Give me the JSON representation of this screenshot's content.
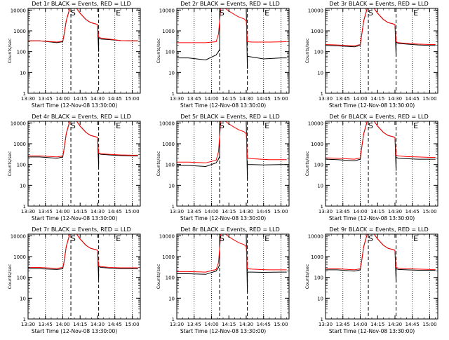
{
  "xlabel": "Start Time (12-Nov-08 13:30:00)",
  "ylabel": "Counts/sec",
  "x_ticks": [
    "13:30",
    "13:45",
    "14:00",
    "14:15",
    "14:30",
    "14:45",
    "15:00"
  ],
  "y_ticks": [
    "1",
    "10",
    "100",
    "1000",
    "10000"
  ],
  "start_marker": "S",
  "end_marker": "E",
  "colors": {
    "events": "#000000",
    "lld": "#ff0000",
    "axes": "#000000"
  },
  "chart_data": [
    {
      "type": "line",
      "title": "Det 1r BLACK = Events, RED = LLD",
      "xlim": [
        "13:30",
        "15:07"
      ],
      "ylim": [
        1,
        12000
      ],
      "yscale": "log",
      "series": [
        {
          "color": "black",
          "x": [
            "13:30",
            "13:40",
            "13:55",
            "14:00",
            "14:01",
            "14:03",
            "14:06",
            "14:08",
            "14:12",
            "14:15",
            "14:20",
            "14:24",
            "14:28",
            "14:30",
            "14:31",
            "14:31",
            "14:33",
            "14:40",
            "14:50",
            "15:00",
            "15:05"
          ],
          "y": [
            330,
            330,
            270,
            300,
            600,
            3000,
            12000,
            12000,
            12000,
            7000,
            3500,
            2500,
            2200,
            2000,
            100,
            450,
            400,
            380,
            340,
            330,
            330
          ]
        },
        {
          "color": "red",
          "x": [
            "13:30",
            "13:40",
            "13:55",
            "14:00",
            "14:01",
            "14:03",
            "14:06",
            "14:08",
            "14:12",
            "14:15",
            "14:20",
            "14:24",
            "14:28",
            "14:30",
            "14:31",
            "14:33",
            "14:40",
            "14:50",
            "15:00",
            "15:05"
          ],
          "y": [
            330,
            330,
            290,
            320,
            600,
            3000,
            12000,
            12000,
            12000,
            7000,
            3500,
            2500,
            2200,
            2000,
            500,
            450,
            400,
            340,
            330,
            330
          ]
        }
      ]
    },
    {
      "type": "line",
      "title": "Det 2r BLACK = Events, RED = LLD",
      "xlim": [
        "13:30",
        "15:07"
      ],
      "ylim": [
        1,
        12000
      ],
      "yscale": "log",
      "series": [
        {
          "color": "black",
          "x": [
            "13:30",
            "13:40",
            "13:55",
            "14:04",
            "14:06",
            "14:07",
            "14:07",
            "14:09",
            "14:28",
            "14:30",
            "14:31",
            "14:31",
            "14:35",
            "14:45",
            "15:00",
            "15:05"
          ],
          "y": [
            50,
            50,
            40,
            70,
            100,
            130,
            12000,
            12000,
            12000,
            12000,
            15,
            60,
            55,
            45,
            50,
            50
          ]
        },
        {
          "color": "red",
          "x": [
            "13:30",
            "13:40",
            "13:55",
            "14:04",
            "14:06",
            "14:08",
            "14:12",
            "14:15",
            "14:20",
            "14:24",
            "14:28",
            "14:30",
            "14:31",
            "14:35",
            "14:50",
            "15:05"
          ],
          "y": [
            270,
            270,
            270,
            300,
            700,
            12000,
            12000,
            9000,
            6000,
            4500,
            3800,
            3000,
            300,
            290,
            290,
            300
          ]
        }
      ]
    },
    {
      "type": "line",
      "title": "Det 3r BLACK = Events, RED = LLD",
      "xlim": [
        "13:30",
        "15:07"
      ],
      "ylim": [
        1,
        12000
      ],
      "yscale": "log",
      "series": [
        {
          "color": "black",
          "x": [
            "13:30",
            "13:40",
            "13:55",
            "14:00",
            "14:01",
            "14:03",
            "14:06",
            "14:08",
            "14:12",
            "14:15",
            "14:20",
            "14:24",
            "14:28",
            "14:30",
            "14:31",
            "14:31",
            "14:33",
            "14:40",
            "14:50",
            "15:00",
            "15:05"
          ],
          "y": [
            200,
            190,
            170,
            200,
            500,
            3000,
            12000,
            12000,
            12000,
            7000,
            3500,
            2500,
            2200,
            2000,
            60,
            280,
            250,
            230,
            210,
            200,
            200
          ]
        },
        {
          "color": "red",
          "x": [
            "13:30",
            "13:40",
            "13:55",
            "14:00",
            "14:01",
            "14:03",
            "14:06",
            "14:08",
            "14:12",
            "14:15",
            "14:20",
            "14:24",
            "14:28",
            "14:30",
            "14:31",
            "14:33",
            "14:40",
            "14:50",
            "15:00",
            "15:05"
          ],
          "y": [
            220,
            210,
            190,
            220,
            500,
            3000,
            12000,
            12000,
            12000,
            7000,
            3500,
            2500,
            2200,
            2000,
            300,
            270,
            250,
            230,
            220,
            220
          ]
        }
      ]
    },
    {
      "type": "line",
      "title": "Det 4r BLACK = Events, RED = LLD",
      "xlim": [
        "13:30",
        "15:07"
      ],
      "ylim": [
        1,
        12000
      ],
      "yscale": "log",
      "series": [
        {
          "color": "black",
          "x": [
            "13:30",
            "13:40",
            "13:55",
            "14:00",
            "14:01",
            "14:03",
            "14:06",
            "14:08",
            "14:12",
            "14:15",
            "14:20",
            "14:24",
            "14:28",
            "14:30",
            "14:31",
            "14:31",
            "14:33",
            "14:40",
            "14:50",
            "15:00",
            "15:05"
          ],
          "y": [
            230,
            230,
            200,
            230,
            500,
            3000,
            12000,
            12000,
            12000,
            7000,
            3500,
            2500,
            2200,
            2000,
            80,
            330,
            310,
            290,
            270,
            260,
            260
          ]
        },
        {
          "color": "red",
          "x": [
            "13:30",
            "13:40",
            "13:55",
            "14:00",
            "14:01",
            "14:03",
            "14:06",
            "14:08",
            "14:12",
            "14:15",
            "14:20",
            "14:24",
            "14:28",
            "14:30",
            "14:31",
            "14:33",
            "14:40",
            "14:50",
            "15:00",
            "15:05"
          ],
          "y": [
            260,
            260,
            230,
            260,
            500,
            3000,
            12000,
            12000,
            12000,
            7000,
            3500,
            2500,
            2200,
            2000,
            350,
            330,
            310,
            290,
            280,
            280
          ]
        }
      ]
    },
    {
      "type": "line",
      "title": "Det 5r BLACK = Events, RED = LLD",
      "xlim": [
        "13:30",
        "15:07"
      ],
      "ylim": [
        1,
        12000
      ],
      "yscale": "log",
      "series": [
        {
          "color": "black",
          "x": [
            "13:30",
            "13:40",
            "13:55",
            "14:04",
            "14:06",
            "14:07",
            "14:07",
            "14:09",
            "14:28",
            "14:30",
            "14:31",
            "14:31",
            "14:35",
            "14:45",
            "15:00",
            "15:05"
          ],
          "y": [
            90,
            90,
            80,
            120,
            180,
            250,
            12000,
            12000,
            12000,
            12000,
            20,
            100,
            100,
            95,
            100,
            100
          ]
        },
        {
          "color": "red",
          "x": [
            "13:30",
            "13:40",
            "13:55",
            "14:04",
            "14:06",
            "14:08",
            "14:12",
            "14:15",
            "14:20",
            "14:24",
            "14:28",
            "14:30",
            "14:31",
            "14:35",
            "14:50",
            "15:05"
          ],
          "y": [
            130,
            130,
            120,
            160,
            400,
            12000,
            12000,
            9000,
            6000,
            4500,
            3800,
            3000,
            200,
            190,
            170,
            170
          ]
        }
      ]
    },
    {
      "type": "line",
      "title": "Det 6r BLACK = Events, RED = LLD",
      "xlim": [
        "13:30",
        "15:07"
      ],
      "ylim": [
        1,
        12000
      ],
      "yscale": "log",
      "series": [
        {
          "color": "black",
          "x": [
            "13:30",
            "13:40",
            "13:55",
            "14:00",
            "14:01",
            "14:03",
            "14:06",
            "14:08",
            "14:12",
            "14:15",
            "14:20",
            "14:24",
            "14:28",
            "14:30",
            "14:31",
            "14:31",
            "14:33",
            "14:40",
            "14:50",
            "15:00",
            "15:05"
          ],
          "y": [
            180,
            170,
            150,
            180,
            500,
            3000,
            12000,
            12000,
            12000,
            7000,
            3500,
            2500,
            2200,
            2000,
            50,
            220,
            200,
            190,
            180,
            180,
            180
          ]
        },
        {
          "color": "red",
          "x": [
            "13:30",
            "13:40",
            "13:55",
            "14:00",
            "14:01",
            "14:03",
            "14:06",
            "14:08",
            "14:12",
            "14:15",
            "14:20",
            "14:24",
            "14:28",
            "14:30",
            "14:31",
            "14:33",
            "14:40",
            "14:50",
            "15:00",
            "15:05"
          ],
          "y": [
            210,
            200,
            180,
            210,
            500,
            3000,
            12000,
            12000,
            12000,
            7000,
            3500,
            2500,
            2200,
            2000,
            280,
            260,
            240,
            230,
            220,
            220
          ]
        }
      ]
    },
    {
      "type": "line",
      "title": "Det 7r BLACK = Events, RED = LLD",
      "xlim": [
        "13:30",
        "15:07"
      ],
      "ylim": [
        1,
        12000
      ],
      "yscale": "log",
      "series": [
        {
          "color": "black",
          "x": [
            "13:30",
            "13:40",
            "13:55",
            "14:00",
            "14:01",
            "14:03",
            "14:06",
            "14:08",
            "14:12",
            "14:15",
            "14:20",
            "14:24",
            "14:28",
            "14:30",
            "14:31",
            "14:31",
            "14:33",
            "14:40",
            "14:50",
            "15:00",
            "15:05"
          ],
          "y": [
            260,
            260,
            240,
            260,
            500,
            3000,
            12000,
            12000,
            12000,
            7000,
            3500,
            2500,
            2200,
            2000,
            80,
            330,
            300,
            280,
            260,
            260,
            260
          ]
        },
        {
          "color": "red",
          "x": [
            "13:30",
            "13:40",
            "13:55",
            "14:00",
            "14:01",
            "14:03",
            "14:06",
            "14:08",
            "14:12",
            "14:15",
            "14:20",
            "14:24",
            "14:28",
            "14:30",
            "14:31",
            "14:33",
            "14:40",
            "14:50",
            "15:00",
            "15:05"
          ],
          "y": [
            300,
            300,
            270,
            300,
            500,
            3000,
            12000,
            12000,
            12000,
            7000,
            3500,
            2500,
            2200,
            2000,
            350,
            330,
            300,
            290,
            290,
            290
          ]
        }
      ]
    },
    {
      "type": "line",
      "title": "Det 8r BLACK = Events, RED = LLD",
      "xlim": [
        "13:30",
        "15:07"
      ],
      "ylim": [
        1,
        12000
      ],
      "yscale": "log",
      "series": [
        {
          "color": "black",
          "x": [
            "13:30",
            "13:40",
            "13:55",
            "14:04",
            "14:06",
            "14:07",
            "14:07",
            "14:09",
            "14:28",
            "14:30",
            "14:31",
            "14:31",
            "14:35",
            "14:45",
            "15:00",
            "15:05"
          ],
          "y": [
            150,
            150,
            140,
            200,
            300,
            400,
            12000,
            12000,
            12000,
            12000,
            20,
            180,
            180,
            175,
            180,
            180
          ]
        },
        {
          "color": "red",
          "x": [
            "13:30",
            "13:40",
            "13:55",
            "14:04",
            "14:06",
            "14:08",
            "14:12",
            "14:15",
            "14:20",
            "14:24",
            "14:28",
            "14:30",
            "14:31",
            "14:35",
            "14:50",
            "15:05"
          ],
          "y": [
            190,
            190,
            180,
            240,
            500,
            12000,
            12000,
            9000,
            6000,
            4500,
            3800,
            3000,
            260,
            250,
            230,
            230
          ]
        }
      ]
    },
    {
      "type": "line",
      "title": "Det 9r BLACK = Events, RED = LLD",
      "xlim": [
        "13:30",
        "15:07"
      ],
      "ylim": [
        1,
        12000
      ],
      "yscale": "log",
      "series": [
        {
          "color": "black",
          "x": [
            "13:30",
            "13:40",
            "13:55",
            "14:00",
            "14:01",
            "14:03",
            "14:06",
            "14:08",
            "14:12",
            "14:15",
            "14:20",
            "14:24",
            "14:28",
            "14:30",
            "14:31",
            "14:31",
            "14:33",
            "14:40",
            "14:50",
            "15:00",
            "15:05"
          ],
          "y": [
            230,
            230,
            200,
            230,
            500,
            3000,
            12000,
            12000,
            12000,
            7000,
            3500,
            2500,
            2200,
            2000,
            60,
            260,
            240,
            230,
            220,
            220,
            220
          ]
        },
        {
          "color": "red",
          "x": [
            "13:30",
            "13:40",
            "13:55",
            "14:00",
            "14:01",
            "14:03",
            "14:06",
            "14:08",
            "14:12",
            "14:15",
            "14:20",
            "14:24",
            "14:28",
            "14:30",
            "14:31",
            "14:33",
            "14:40",
            "14:50",
            "15:00",
            "15:05"
          ],
          "y": [
            260,
            260,
            230,
            260,
            500,
            3000,
            12000,
            12000,
            12000,
            7000,
            3500,
            2500,
            2200,
            2000,
            300,
            280,
            260,
            250,
            240,
            240
          ]
        }
      ]
    }
  ]
}
